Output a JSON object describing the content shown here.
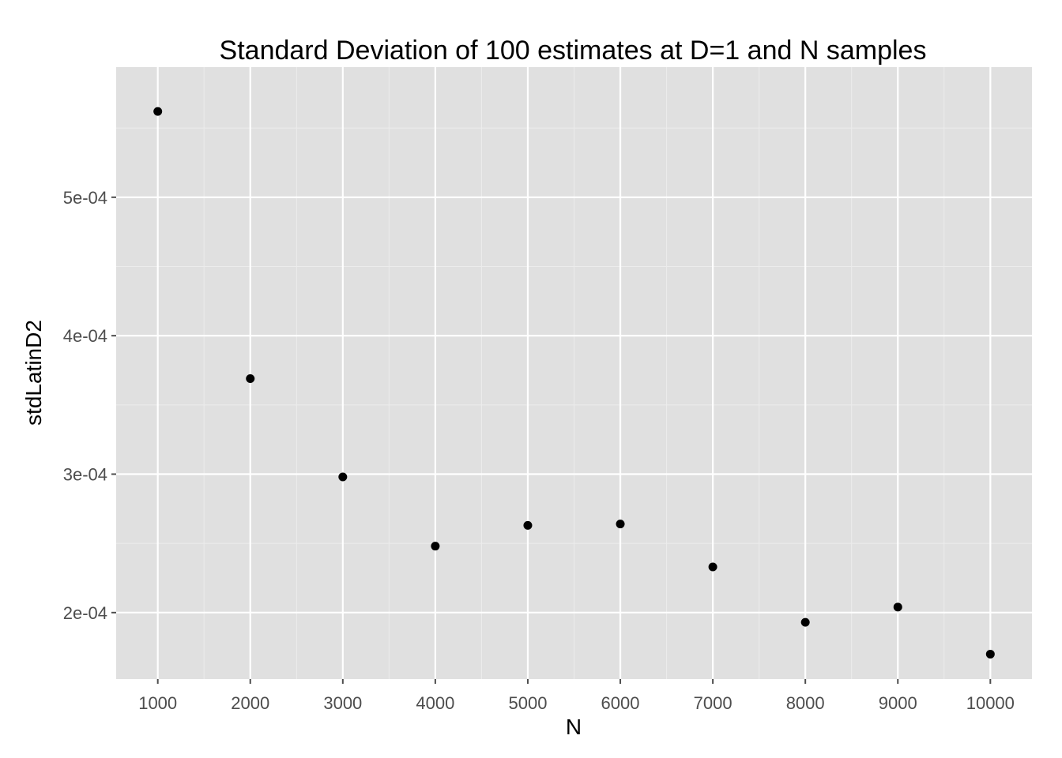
{
  "chart_data": {
    "type": "scatter",
    "title": "Standard Deviation of 100 estimates at D=1 and N samples",
    "xlabel": "N",
    "ylabel": "stdLatinD2",
    "x": [
      1000,
      2000,
      3000,
      4000,
      5000,
      6000,
      7000,
      8000,
      9000,
      10000
    ],
    "y": [
      0.000562,
      0.000369,
      0.000298,
      0.000248,
      0.000263,
      0.000264,
      0.000233,
      0.000193,
      0.000204,
      0.00017
    ],
    "xlim": [
      550,
      10450
    ],
    "ylim": [
      0.000152,
      0.000594
    ],
    "x_ticks": [
      1000,
      2000,
      3000,
      4000,
      5000,
      6000,
      7000,
      8000,
      9000,
      10000
    ],
    "x_tick_labels": [
      "1000",
      "2000",
      "3000",
      "4000",
      "5000",
      "6000",
      "7000",
      "8000",
      "9000",
      "10000"
    ],
    "y_ticks": [
      0.0002,
      0.0003,
      0.0004,
      0.0005
    ],
    "y_tick_labels": [
      "2e-04",
      "3e-04",
      "4e-04",
      "5e-04"
    ],
    "grid": true,
    "legend": "none",
    "colors": {
      "panel": "#e0e0e0",
      "grid": "#ffffff",
      "point": "#000000"
    }
  }
}
